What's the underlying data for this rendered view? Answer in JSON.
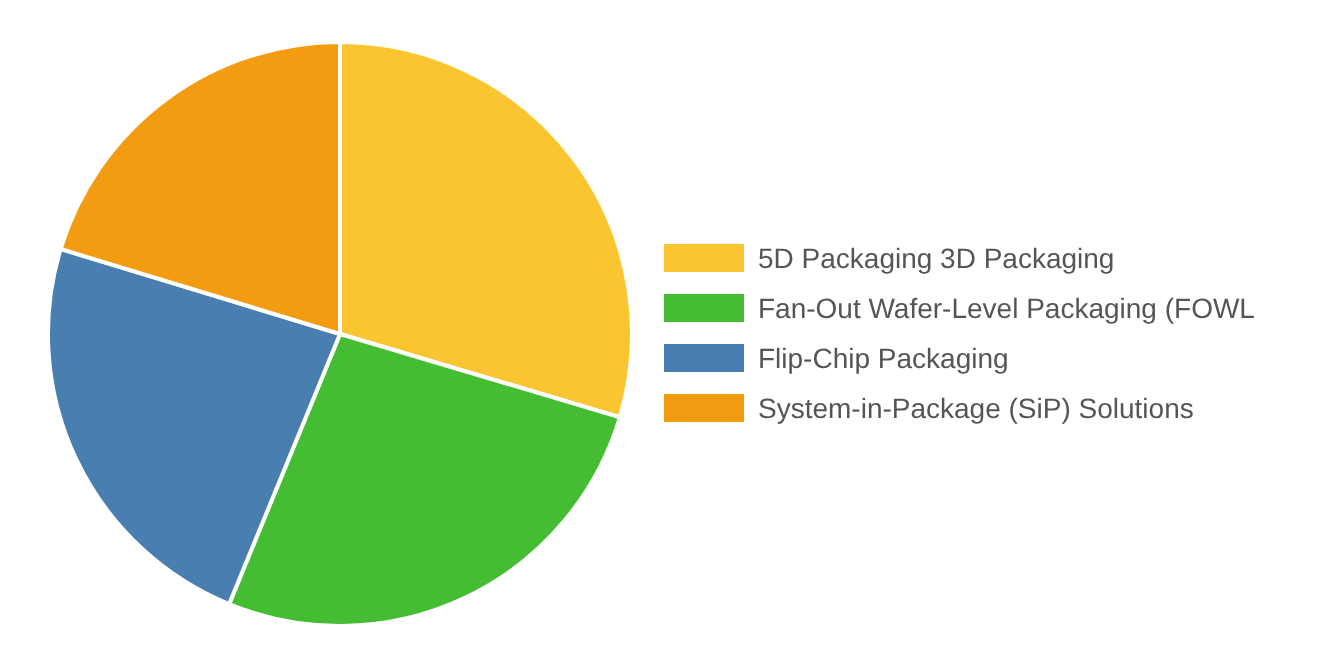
{
  "chart_data": {
    "type": "pie",
    "categories": [
      "5D Packaging 3D Packaging",
      "Fan-Out Wafer-Level Packaging (FOWL",
      "Flip-Chip Packaging",
      "System-in-Package (SiP) Solutions"
    ],
    "values": [
      29.6,
      26.6,
      23.5,
      20.3
    ],
    "colors": [
      "#fbc531",
      "#44bd32",
      "#487eb0",
      "#f39c12"
    ],
    "legend": "right"
  }
}
